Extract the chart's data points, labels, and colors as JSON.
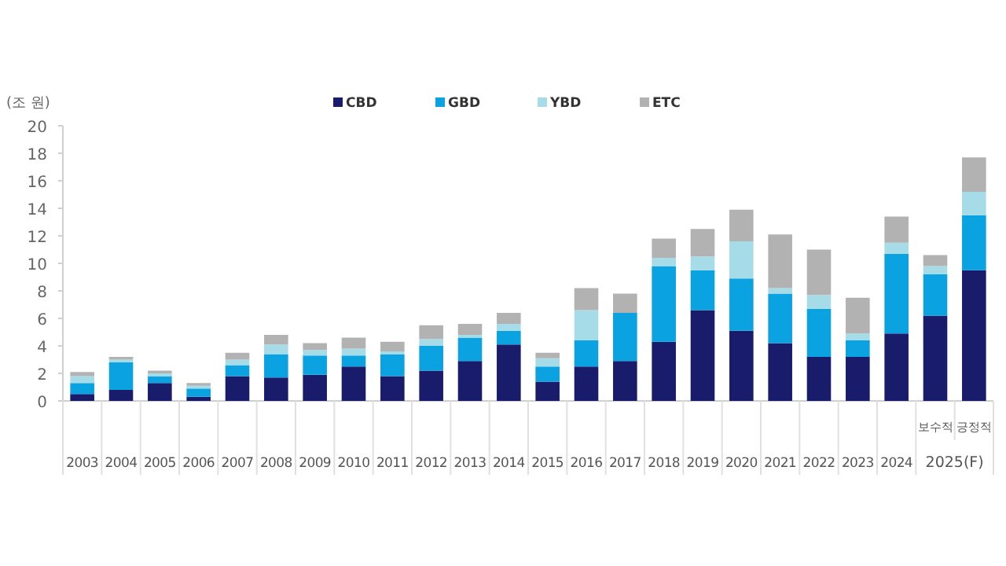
{
  "chart_data": {
    "type": "bar",
    "stacked": true,
    "ylabel": "(조 원)",
    "legend": "top",
    "ylim": [
      0,
      20
    ],
    "yticks": [
      0,
      2,
      4,
      6,
      8,
      10,
      12,
      14,
      16,
      18,
      20
    ],
    "categories": [
      "2003",
      "2004",
      "2005",
      "2006",
      "2007",
      "2008",
      "2009",
      "2010",
      "2011",
      "2012",
      "2013",
      "2014",
      "2015",
      "2016",
      "2017",
      "2018",
      "2019",
      "2020",
      "2021",
      "2022",
      "2023",
      "2024",
      "보수적",
      "긍정적"
    ],
    "annotations": [
      "2025(F)"
    ],
    "series": [
      {
        "name": "CBD",
        "color": "#191b6b",
        "values": [
          0.5,
          0.8,
          1.3,
          0.3,
          1.8,
          1.7,
          1.9,
          2.5,
          1.8,
          2.2,
          2.9,
          4.1,
          1.4,
          2.5,
          2.9,
          4.3,
          6.6,
          5.1,
          4.2,
          3.2,
          3.2,
          4.9,
          6.2,
          9.5
        ]
      },
      {
        "name": "GBD",
        "color": "#0aa2e0",
        "values": [
          0.8,
          2.0,
          0.5,
          0.6,
          0.8,
          1.7,
          1.4,
          0.8,
          1.6,
          1.8,
          1.7,
          1.0,
          1.1,
          1.9,
          3.5,
          5.5,
          2.9,
          3.8,
          3.6,
          3.5,
          1.2,
          5.8,
          3.0,
          4.0
        ]
      },
      {
        "name": "YBD",
        "color": "#a6dbe8",
        "values": [
          0.5,
          0.2,
          0.2,
          0.2,
          0.4,
          0.7,
          0.4,
          0.5,
          0.2,
          0.5,
          0.2,
          0.5,
          0.6,
          2.2,
          null,
          0.6,
          1.0,
          2.7,
          0.4,
          1.0,
          0.5,
          0.8,
          0.6,
          1.7
        ]
      },
      {
        "name": "ETC",
        "color": "#b2b2b2",
        "values": [
          0.3,
          0.2,
          0.2,
          0.2,
          0.5,
          0.7,
          0.5,
          0.8,
          0.7,
          1.0,
          0.8,
          0.8,
          0.4,
          1.6,
          1.4,
          1.4,
          2.0,
          2.3,
          3.9,
          3.3,
          2.6,
          1.9,
          0.8,
          2.5
        ]
      }
    ]
  }
}
